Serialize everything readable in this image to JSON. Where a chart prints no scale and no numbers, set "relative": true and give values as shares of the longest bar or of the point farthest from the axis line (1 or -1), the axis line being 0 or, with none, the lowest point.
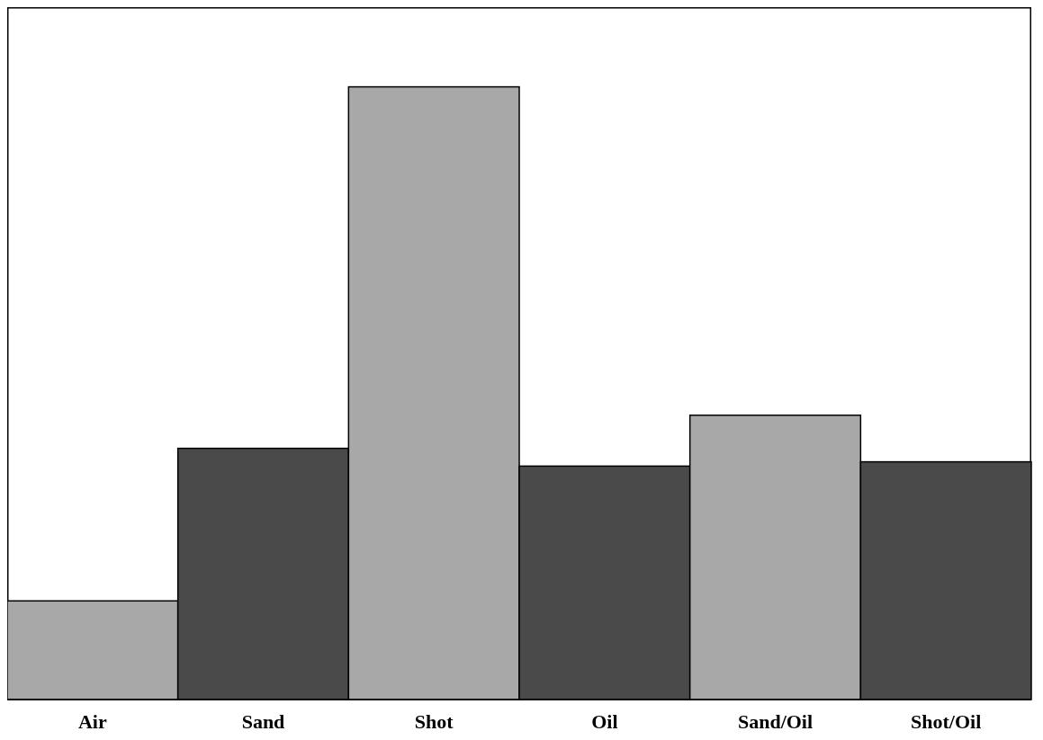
{
  "chart_data": {
    "type": "bar",
    "relative": true,
    "categories": [
      "Air",
      "Sand",
      "Shot",
      "Oil",
      "Sand/Oil",
      "Shot/Oil"
    ],
    "values": [
      0.161,
      0.41,
      1,
      0.381,
      0.464,
      0.388
    ],
    "colors": [
      "#a8a8a8",
      "#4a4a4a",
      "#a8a8a8",
      "#4a4a4a",
      "#a8a8a8",
      "#4a4a4a"
    ]
  }
}
